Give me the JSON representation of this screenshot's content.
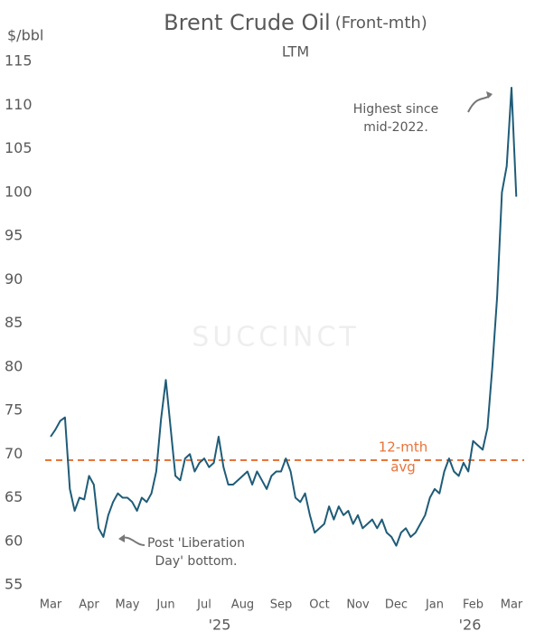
{
  "chart_data": {
    "type": "line",
    "title": "Brent Crude Oil",
    "title_note": "(Front-mth)",
    "subtitle": "LTM",
    "y_label": "$/bbl",
    "watermark": "SUCCINCT",
    "categories": [
      "Mar",
      null,
      null,
      null,
      null,
      null,
      null,
      null,
      "Apr",
      null,
      null,
      null,
      null,
      null,
      null,
      null,
      "May",
      null,
      null,
      null,
      null,
      null,
      null,
      null,
      "Jun",
      null,
      null,
      null,
      null,
      null,
      null,
      null,
      "Jul",
      null,
      null,
      null,
      null,
      null,
      null,
      null,
      "Aug",
      null,
      null,
      null,
      null,
      null,
      null,
      null,
      "Sep",
      null,
      null,
      null,
      null,
      null,
      null,
      null,
      "Oct",
      null,
      null,
      null,
      null,
      null,
      null,
      null,
      "Nov",
      null,
      null,
      null,
      null,
      null,
      null,
      null,
      "Dec",
      null,
      null,
      null,
      null,
      null,
      null,
      null,
      "Jan",
      null,
      null,
      null,
      null,
      null,
      null,
      null,
      "Feb",
      null,
      null,
      null,
      null,
      null,
      null,
      null,
      "Mar",
      null
    ],
    "year_labels": [
      "'25",
      "'26"
    ],
    "series": [
      {
        "name": "Brent",
        "color": "#1f5c78",
        "values": [
          72,
          72.8,
          73.8,
          74.2,
          66,
          63.5,
          65,
          64.8,
          67.5,
          66.5,
          61.5,
          60.5,
          63,
          64.5,
          65.5,
          65,
          65,
          64.5,
          63.5,
          65,
          64.5,
          65.5,
          68,
          74,
          78.5,
          73,
          67.5,
          67,
          69.5,
          70,
          68,
          69,
          69.5,
          68.5,
          69,
          72,
          68.5,
          66.5,
          66.5,
          67,
          67.5,
          68,
          66.5,
          68,
          67,
          66,
          67.5,
          68,
          68,
          69.5,
          68,
          65,
          64.5,
          65.5,
          63,
          61,
          61.5,
          62,
          64,
          62.5,
          64,
          63,
          63.5,
          62,
          63,
          61.5,
          62,
          62.5,
          61.5,
          62.5,
          61,
          60.5,
          59.5,
          61,
          61.5,
          60.5,
          61,
          62,
          63,
          65,
          66,
          65.5,
          68,
          69.5,
          68,
          67.5,
          69,
          68,
          71.5,
          71,
          70.5,
          73,
          80,
          88,
          100,
          103,
          112,
          99.5
        ]
      }
    ],
    "average": {
      "value": 69.3,
      "label": [
        "12-mth",
        "avg"
      ],
      "color": "#e8743b"
    },
    "annotations": [
      {
        "text": [
          "Highest since",
          "mid-2022."
        ]
      },
      {
        "text": [
          "Post 'Liberation",
          "Day' bottom."
        ]
      }
    ],
    "ylim": [
      55,
      115
    ],
    "yticks": [
      55,
      60,
      65,
      70,
      75,
      80,
      85,
      90,
      95,
      100,
      105,
      110,
      115
    ],
    "grid": false
  }
}
